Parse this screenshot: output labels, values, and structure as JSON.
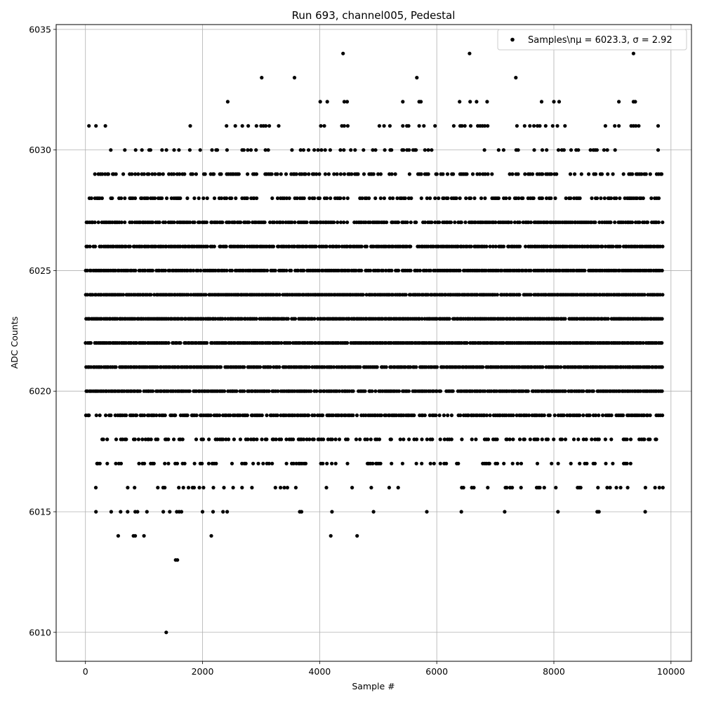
{
  "chart_data": {
    "type": "scatter",
    "title": "Run 693, channel005, Pedestal",
    "xlabel": "Sample #",
    "ylabel": "ADC Counts",
    "xlim": [
      -500,
      10350
    ],
    "ylim": [
      6008.8,
      6035.2
    ],
    "x_ticks": [
      0,
      2000,
      4000,
      6000,
      8000,
      10000
    ],
    "y_ticks": [
      6010,
      6015,
      6020,
      6025,
      6030,
      6035
    ],
    "grid": true,
    "legend_position": "top-right",
    "series": [
      {
        "name": "Samples\\nμ = 6023.3, σ = 2.92",
        "color": "#000000",
        "marker": "circle",
        "x_range": [
          0,
          9850
        ],
        "sample_count": 9851,
        "levels": [
          {
            "y": 6010,
            "x": [
              1380
            ]
          },
          {
            "y": 6013,
            "x": [
              1540,
              1570
            ]
          },
          {
            "y": 6014,
            "x": [
              560,
              820,
              850,
              1000,
              2150,
              4190,
              4640
            ]
          },
          {
            "y": 6015,
            "x": [
              180,
              440,
              600,
              720,
              850,
              890,
              1050,
              1330,
              1440,
              1560,
              1600,
              1640,
              2000,
              2180,
              2350,
              2420,
              3660,
              3690,
              4210,
              4920,
              5830,
              6420,
              7160,
              8070,
              8740,
              8770,
              9560
            ]
          },
          {
            "y": 6031,
            "x": [
              60,
              180,
              340,
              1790,
              2410,
              2560,
              2680,
              2780,
              2920,
              3000,
              3040,
              3080,
              3140,
              3300,
              4020,
              4080,
              4380,
              4420,
              4480,
              5020,
              5100,
              5200,
              5420,
              5490,
              5520,
              5700,
              5780,
              5970,
              6290,
              6400,
              6430,
              6480,
              6580,
              6700,
              6740,
              6780,
              6820,
              6870,
              7370,
              7500,
              7590,
              7660,
              7720,
              7760,
              7860,
              7980,
              8060,
              8190,
              8880,
              9040,
              9110,
              9320,
              9360,
              9400,
              9450,
              9780
            ]
          },
          {
            "y": 6032,
            "x": [
              2430,
              4010,
              4130,
              4420,
              4470,
              5420,
              5700,
              5730,
              6390,
              6570,
              6680,
              6860,
              7790,
              8000,
              8090,
              9110,
              9360,
              9390
            ]
          },
          {
            "y": 6033,
            "x": [
              3010,
              3570,
              5660,
              7350
            ]
          },
          {
            "y": 6034,
            "x": [
              4400,
              6560,
              9360
            ]
          }
        ],
        "dense_levels": [
          {
            "y": 6016,
            "x_span": [
              170,
              9960
            ],
            "density": 0.18
          },
          {
            "y": 6017,
            "x_span": [
              150,
              9650
            ],
            "density": 0.3
          },
          {
            "y": 6018,
            "x_span": [
              0,
              9750
            ],
            "density": 0.45
          },
          {
            "y": 6019,
            "x_span": [
              0,
              9850
            ],
            "density": 0.8
          },
          {
            "y": 6020,
            "x_span": [
              0,
              9850
            ],
            "density": 0.92
          },
          {
            "y": 6021,
            "x_span": [
              0,
              9850
            ],
            "density": 0.95
          },
          {
            "y": 6022,
            "x_span": [
              0,
              9850
            ],
            "density": 0.97
          },
          {
            "y": 6023,
            "x_span": [
              0,
              9850
            ],
            "density": 0.98
          },
          {
            "y": 6024,
            "x_span": [
              0,
              9850
            ],
            "density": 0.97
          },
          {
            "y": 6025,
            "x_span": [
              0,
              9850
            ],
            "density": 0.93
          },
          {
            "y": 6026,
            "x_span": [
              0,
              9850
            ],
            "density": 0.9
          },
          {
            "y": 6027,
            "x_span": [
              0,
              9850
            ],
            "density": 0.85
          },
          {
            "y": 6028,
            "x_span": [
              0,
              9850
            ],
            "density": 0.55
          },
          {
            "y": 6029,
            "x_span": [
              0,
              9850
            ],
            "density": 0.5
          },
          {
            "y": 6030,
            "x_span": [
              0,
              9800
            ],
            "density": 0.2
          }
        ]
      }
    ]
  }
}
